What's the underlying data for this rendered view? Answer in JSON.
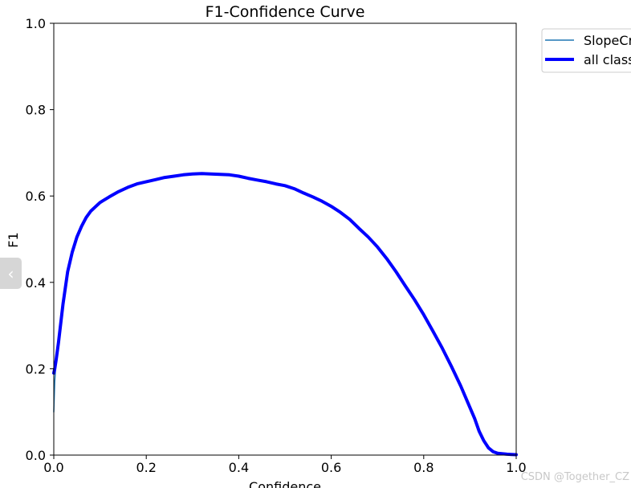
{
  "chart_data": {
    "type": "line",
    "title": "F1-Confidence Curve",
    "xlabel": "Confidence",
    "ylabel": "F1",
    "xlim": [
      0.0,
      1.0
    ],
    "ylim": [
      0.0,
      1.0
    ],
    "xticks": [
      "0.0",
      "0.2",
      "0.4",
      "0.6",
      "0.8",
      "1.0"
    ],
    "yticks": [
      "0.0",
      "0.2",
      "0.4",
      "0.6",
      "0.8",
      "1.0"
    ],
    "grid": false,
    "legend_position": "outside-top-right",
    "series": [
      {
        "name": "SlopeCr",
        "color": "#1f77b4",
        "x": [
          0.0,
          0.002,
          0.005,
          0.01,
          0.02,
          0.03,
          0.04,
          0.05,
          0.06,
          0.07,
          0.08,
          0.09,
          0.1,
          0.12,
          0.14,
          0.16,
          0.18,
          0.2,
          0.22,
          0.24,
          0.26,
          0.28,
          0.3,
          0.32,
          0.34,
          0.36,
          0.38,
          0.4,
          0.42,
          0.44,
          0.46,
          0.48,
          0.5,
          0.52,
          0.54,
          0.56,
          0.58,
          0.6,
          0.62,
          0.64,
          0.66,
          0.68,
          0.7,
          0.72,
          0.74,
          0.76,
          0.78,
          0.8,
          0.82,
          0.84,
          0.86,
          0.88,
          0.9,
          0.91,
          0.92,
          0.93,
          0.94,
          0.95,
          0.96,
          0.98,
          1.0
        ],
        "y": [
          0.1,
          0.17,
          0.22,
          0.26,
          0.35,
          0.425,
          0.47,
          0.505,
          0.53,
          0.55,
          0.565,
          0.575,
          0.585,
          0.598,
          0.61,
          0.62,
          0.628,
          0.633,
          0.638,
          0.643,
          0.646,
          0.649,
          0.651,
          0.652,
          0.651,
          0.65,
          0.649,
          0.646,
          0.641,
          0.637,
          0.633,
          0.628,
          0.624,
          0.617,
          0.607,
          0.598,
          0.588,
          0.576,
          0.562,
          0.546,
          0.525,
          0.505,
          0.482,
          0.455,
          0.425,
          0.392,
          0.36,
          0.325,
          0.287,
          0.248,
          0.205,
          0.16,
          0.11,
          0.085,
          0.055,
          0.033,
          0.017,
          0.008,
          0.004,
          0.002,
          0.001
        ]
      },
      {
        "name": "all class",
        "color": "#0000ff",
        "x": [
          0.0,
          0.002,
          0.005,
          0.01,
          0.02,
          0.03,
          0.04,
          0.05,
          0.06,
          0.07,
          0.08,
          0.09,
          0.1,
          0.12,
          0.14,
          0.16,
          0.18,
          0.2,
          0.22,
          0.24,
          0.26,
          0.28,
          0.3,
          0.32,
          0.34,
          0.36,
          0.38,
          0.4,
          0.42,
          0.44,
          0.46,
          0.48,
          0.5,
          0.52,
          0.54,
          0.56,
          0.58,
          0.6,
          0.62,
          0.64,
          0.66,
          0.68,
          0.7,
          0.72,
          0.74,
          0.76,
          0.78,
          0.8,
          0.82,
          0.84,
          0.86,
          0.88,
          0.9,
          0.91,
          0.92,
          0.93,
          0.94,
          0.95,
          0.96,
          0.98,
          1.0
        ],
        "y": [
          0.19,
          0.2,
          0.22,
          0.26,
          0.35,
          0.425,
          0.47,
          0.505,
          0.53,
          0.55,
          0.565,
          0.575,
          0.585,
          0.598,
          0.61,
          0.62,
          0.628,
          0.633,
          0.638,
          0.643,
          0.646,
          0.649,
          0.651,
          0.652,
          0.651,
          0.65,
          0.649,
          0.646,
          0.641,
          0.637,
          0.633,
          0.628,
          0.624,
          0.617,
          0.607,
          0.598,
          0.588,
          0.576,
          0.562,
          0.546,
          0.525,
          0.505,
          0.482,
          0.455,
          0.425,
          0.392,
          0.36,
          0.325,
          0.287,
          0.248,
          0.205,
          0.16,
          0.11,
          0.085,
          0.055,
          0.033,
          0.017,
          0.008,
          0.004,
          0.002,
          0.001
        ]
      }
    ]
  },
  "side_tab": {
    "icon": "chevron-left-icon",
    "glyph": "‹"
  },
  "watermark": {
    "text": "CSDN @Together_CZ"
  }
}
